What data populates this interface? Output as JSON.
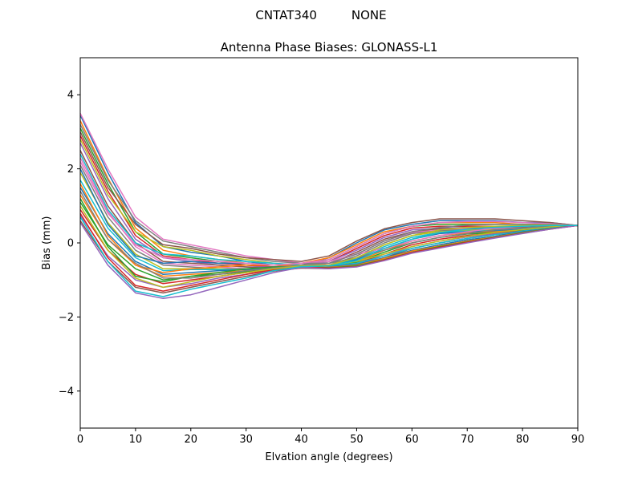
{
  "chart_data": {
    "type": "line",
    "suptitle": "CNTAT340         NONE",
    "title": "Antenna Phase Biases: GLONASS-L1",
    "xlabel": "Elvation angle (degrees)",
    "ylabel": "Bias (mm)",
    "xlim": [
      0,
      90
    ],
    "ylim": [
      -5,
      5
    ],
    "xticks": [
      0,
      10,
      20,
      30,
      40,
      50,
      60,
      70,
      80,
      90
    ],
    "yticks": [
      -4,
      -2,
      0,
      2,
      4
    ],
    "ytick_labels": [
      "−4",
      "−2",
      "0",
      "2",
      "4"
    ],
    "grid": false,
    "legend": false,
    "x": [
      0,
      5,
      10,
      15,
      20,
      25,
      30,
      35,
      40,
      45,
      50,
      55,
      60,
      65,
      70,
      75,
      80,
      85,
      90
    ],
    "colors": [
      "#1f77b4",
      "#ff7f0e",
      "#2ca02c",
      "#d62728",
      "#9467bd",
      "#8c564b",
      "#e377c2",
      "#7f7f7f",
      "#bcbd22",
      "#17becf"
    ],
    "series": [
      {
        "values": [
          3.45,
          1.9,
          0.55,
          -0.1,
          -0.25,
          -0.35,
          -0.5,
          -0.6,
          -0.6,
          -0.4,
          0.0,
          0.35,
          0.5,
          0.6,
          0.6,
          0.6,
          0.55,
          0.55,
          0.47
        ]
      },
      {
        "values": [
          3.3,
          1.75,
          0.4,
          -0.2,
          -0.35,
          -0.45,
          -0.55,
          -0.6,
          -0.55,
          -0.4,
          -0.05,
          0.3,
          0.45,
          0.55,
          0.55,
          0.55,
          0.5,
          0.5,
          0.47
        ]
      },
      {
        "values": [
          3.1,
          1.6,
          0.3,
          -0.3,
          -0.4,
          -0.5,
          -0.6,
          -0.65,
          -0.6,
          -0.45,
          -0.1,
          0.25,
          0.45,
          0.5,
          0.5,
          0.5,
          0.5,
          0.5,
          0.47
        ]
      },
      {
        "values": [
          2.9,
          1.4,
          0.2,
          -0.35,
          -0.45,
          -0.55,
          -0.6,
          -0.65,
          -0.6,
          -0.5,
          -0.15,
          0.2,
          0.4,
          0.45,
          0.45,
          0.45,
          0.45,
          0.47,
          0.47
        ]
      },
      {
        "values": [
          2.7,
          1.2,
          0.1,
          -0.4,
          -0.5,
          -0.6,
          -0.65,
          -0.65,
          -0.6,
          -0.5,
          -0.2,
          0.15,
          0.35,
          0.4,
          0.42,
          0.42,
          0.44,
          0.46,
          0.47
        ]
      },
      {
        "values": [
          2.5,
          1.0,
          0.0,
          -0.5,
          -0.55,
          -0.6,
          -0.65,
          -0.7,
          -0.65,
          -0.55,
          -0.25,
          0.1,
          0.3,
          0.38,
          0.4,
          0.4,
          0.42,
          0.45,
          0.47
        ]
      },
      {
        "values": [
          2.3,
          0.85,
          -0.1,
          -0.55,
          -0.6,
          -0.65,
          -0.7,
          -0.7,
          -0.65,
          -0.55,
          -0.3,
          0.05,
          0.28,
          0.35,
          0.38,
          0.38,
          0.4,
          0.44,
          0.47
        ]
      },
      {
        "values": [
          2.1,
          0.7,
          -0.2,
          -0.6,
          -0.65,
          -0.7,
          -0.7,
          -0.7,
          -0.65,
          -0.6,
          -0.35,
          0.0,
          0.25,
          0.33,
          0.36,
          0.36,
          0.4,
          0.44,
          0.47
        ]
      },
      {
        "values": [
          1.9,
          0.55,
          -0.3,
          -0.7,
          -0.7,
          -0.7,
          -0.72,
          -0.7,
          -0.65,
          -0.6,
          -0.4,
          -0.05,
          0.2,
          0.3,
          0.34,
          0.35,
          0.38,
          0.43,
          0.47
        ]
      },
      {
        "values": [
          1.7,
          0.4,
          -0.4,
          -0.75,
          -0.72,
          -0.72,
          -0.72,
          -0.7,
          -0.65,
          -0.62,
          -0.42,
          -0.1,
          0.15,
          0.28,
          0.32,
          0.33,
          0.37,
          0.42,
          0.47
        ]
      },
      {
        "values": [
          1.5,
          0.25,
          -0.5,
          -0.85,
          -0.8,
          -0.75,
          -0.72,
          -0.7,
          -0.66,
          -0.64,
          -0.45,
          -0.15,
          0.1,
          0.25,
          0.3,
          0.32,
          0.36,
          0.42,
          0.47
        ]
      },
      {
        "values": [
          1.3,
          0.1,
          -0.6,
          -0.9,
          -0.85,
          -0.8,
          -0.75,
          -0.7,
          -0.66,
          -0.65,
          -0.5,
          -0.2,
          0.05,
          0.2,
          0.27,
          0.3,
          0.35,
          0.41,
          0.47
        ]
      },
      {
        "values": [
          1.1,
          -0.05,
          -0.7,
          -1.0,
          -0.9,
          -0.85,
          -0.78,
          -0.72,
          -0.67,
          -0.66,
          -0.52,
          -0.25,
          0.0,
          0.15,
          0.24,
          0.28,
          0.33,
          0.4,
          0.47
        ]
      },
      {
        "values": [
          0.9,
          -0.2,
          -0.85,
          -1.1,
          -1.0,
          -0.9,
          -0.8,
          -0.72,
          -0.67,
          -0.67,
          -0.55,
          -0.3,
          -0.05,
          0.1,
          0.2,
          0.26,
          0.32,
          0.4,
          0.47
        ]
      },
      {
        "values": [
          0.75,
          -0.35,
          -1.0,
          -1.2,
          -1.1,
          -0.95,
          -0.85,
          -0.74,
          -0.68,
          -0.68,
          -0.58,
          -0.35,
          -0.1,
          0.05,
          0.16,
          0.24,
          0.3,
          0.39,
          0.47
        ]
      },
      {
        "values": [
          0.6,
          -0.5,
          -1.2,
          -1.35,
          -1.2,
          -1.05,
          -0.9,
          -0.76,
          -0.68,
          -0.7,
          -0.6,
          -0.4,
          -0.15,
          0.0,
          0.12,
          0.22,
          0.29,
          0.38,
          0.47
        ]
      },
      {
        "values": [
          3.5,
          2.0,
          0.7,
          0.1,
          -0.05,
          -0.2,
          -0.35,
          -0.45,
          -0.55,
          -0.5,
          -0.3,
          -0.15,
          0.05,
          0.2,
          0.3,
          0.4,
          0.45,
          0.48,
          0.47
        ]
      },
      {
        "values": [
          3.2,
          1.7,
          0.6,
          0.05,
          -0.1,
          -0.25,
          -0.4,
          -0.5,
          -0.55,
          -0.55,
          -0.4,
          -0.2,
          0.0,
          0.15,
          0.25,
          0.35,
          0.4,
          0.45,
          0.47
        ]
      },
      {
        "values": [
          2.8,
          1.3,
          0.3,
          -0.1,
          -0.2,
          -0.35,
          -0.45,
          -0.55,
          -0.6,
          -0.6,
          -0.5,
          -0.3,
          -0.1,
          0.05,
          0.18,
          0.28,
          0.36,
          0.43,
          0.47
        ]
      },
      {
        "values": [
          2.4,
          0.9,
          0.0,
          -0.3,
          -0.35,
          -0.45,
          -0.5,
          -0.55,
          -0.6,
          -0.62,
          -0.55,
          -0.35,
          -0.15,
          0.0,
          0.12,
          0.22,
          0.32,
          0.4,
          0.47
        ]
      },
      {
        "values": [
          2.0,
          0.5,
          -0.35,
          -0.55,
          -0.5,
          -0.55,
          -0.55,
          -0.6,
          -0.62,
          -0.65,
          -0.58,
          -0.4,
          -0.2,
          -0.05,
          0.08,
          0.18,
          0.3,
          0.39,
          0.47
        ]
      },
      {
        "values": [
          1.6,
          0.2,
          -0.6,
          -0.8,
          -0.7,
          -0.65,
          -0.6,
          -0.6,
          -0.62,
          -0.66,
          -0.6,
          -0.42,
          -0.22,
          -0.08,
          0.05,
          0.16,
          0.28,
          0.38,
          0.47
        ]
      },
      {
        "values": [
          1.2,
          -0.1,
          -0.9,
          -1.05,
          -0.9,
          -0.8,
          -0.7,
          -0.65,
          -0.63,
          -0.67,
          -0.62,
          -0.45,
          -0.25,
          -0.1,
          0.03,
          0.15,
          0.27,
          0.38,
          0.47
        ]
      },
      {
        "values": [
          0.8,
          -0.4,
          -1.15,
          -1.3,
          -1.15,
          -1.0,
          -0.85,
          -0.72,
          -0.65,
          -0.68,
          -0.64,
          -0.46,
          -0.26,
          -0.12,
          0.02,
          0.14,
          0.26,
          0.37,
          0.47
        ]
      },
      {
        "values": [
          0.55,
          -0.6,
          -1.35,
          -1.5,
          -1.4,
          -1.2,
          -1.0,
          -0.8,
          -0.66,
          -0.7,
          -0.65,
          -0.48,
          -0.28,
          -0.14,
          0.0,
          0.13,
          0.25,
          0.37,
          0.47
        ]
      },
      {
        "values": [
          3.0,
          1.5,
          0.5,
          -0.05,
          -0.15,
          -0.3,
          -0.4,
          -0.45,
          -0.5,
          -0.35,
          0.05,
          0.38,
          0.55,
          0.65,
          0.65,
          0.65,
          0.6,
          0.55,
          0.47
        ]
      },
      {
        "values": [
          2.2,
          0.8,
          -0.05,
          -0.4,
          -0.45,
          -0.5,
          -0.55,
          -0.6,
          -0.55,
          -0.45,
          -0.1,
          0.25,
          0.45,
          0.55,
          0.58,
          0.58,
          0.55,
          0.52,
          0.47
        ]
      },
      {
        "values": [
          1.4,
          0.1,
          -0.55,
          -0.95,
          -0.95,
          -0.85,
          -0.75,
          -0.68,
          -0.6,
          -0.55,
          -0.3,
          0.05,
          0.3,
          0.42,
          0.48,
          0.5,
          0.5,
          0.5,
          0.47
        ]
      },
      {
        "values": [
          1.0,
          -0.2,
          -0.95,
          -1.2,
          -1.05,
          -0.9,
          -0.8,
          -0.7,
          -0.62,
          -0.6,
          -0.4,
          -0.05,
          0.2,
          0.35,
          0.42,
          0.45,
          0.47,
          0.48,
          0.47
        ]
      },
      {
        "values": [
          0.7,
          -0.5,
          -1.3,
          -1.45,
          -1.25,
          -1.1,
          -0.95,
          -0.75,
          -0.64,
          -0.62,
          -0.48,
          -0.15,
          0.1,
          0.28,
          0.37,
          0.42,
          0.45,
          0.47,
          0.47
        ]
      }
    ]
  }
}
